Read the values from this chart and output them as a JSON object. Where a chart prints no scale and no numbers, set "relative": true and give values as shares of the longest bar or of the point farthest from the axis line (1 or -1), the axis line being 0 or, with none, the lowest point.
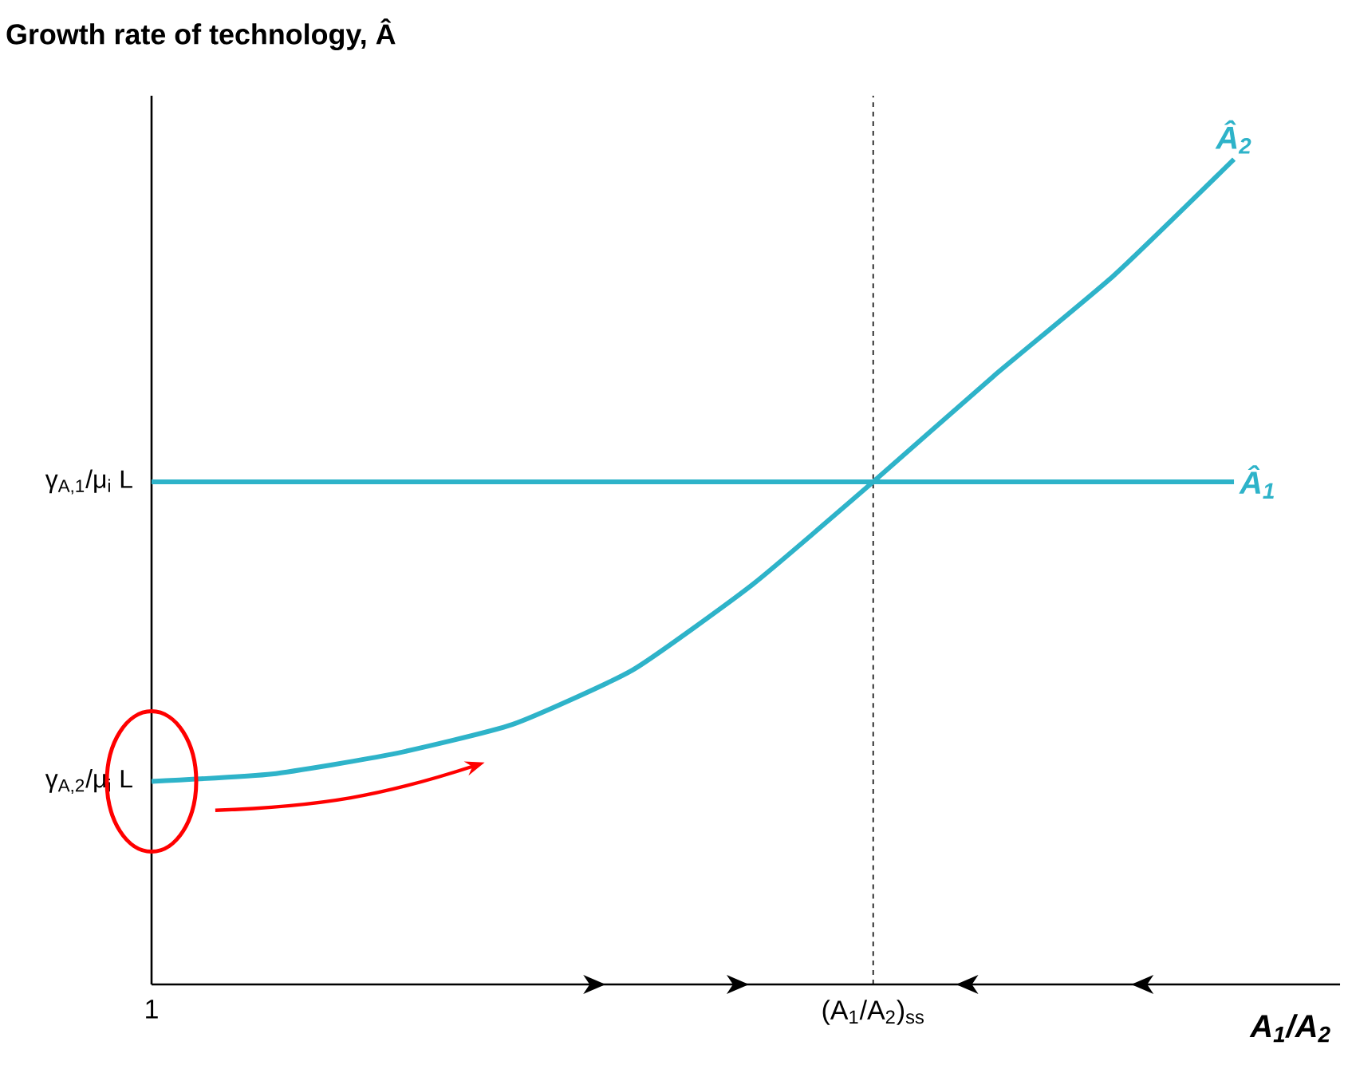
{
  "chart_data": {
    "type": "line",
    "relative": true,
    "ylabel": "Growth rate of technology, Â",
    "xlabel": "A$_{1}$/A$_{2}$",
    "categories": [
      "1",
      null,
      null,
      null,
      null,
      null,
      "(A$_{1}$/A$_{2}$)$_{ss}$",
      null,
      null,
      null
    ],
    "series": [
      {
        "name": "Â$_{1}$",
        "color": "#2eb3c9",
        "values": [
          0.609,
          0.609,
          0.609,
          0.609,
          0.609,
          0.609,
          0.609,
          0.609,
          0.609,
          0.609
        ]
      },
      {
        "name": "Â$_{2}$",
        "color": "#2eb3c9",
        "values": [
          0.246,
          0.255,
          0.279,
          0.315,
          0.381,
          0.485,
          0.609,
          0.737,
          0.859,
          1.0
        ]
      }
    ],
    "ref_lines": [
      {
        "axis": "x",
        "value": "(A$_{1}$/A$_{2}$)$_{ss}$",
        "line_style": "dashed",
        "color": "#000000"
      }
    ],
    "annotations": [
      {
        "text": "γ$_{A,1}$/μ$_{i}$ L",
        "x": "1",
        "y": 0.609
      },
      {
        "text": "γ$_{A,2}$/μ$_{i}$ L",
        "x": "1",
        "y": 0.246
      }
    ]
  }
}
